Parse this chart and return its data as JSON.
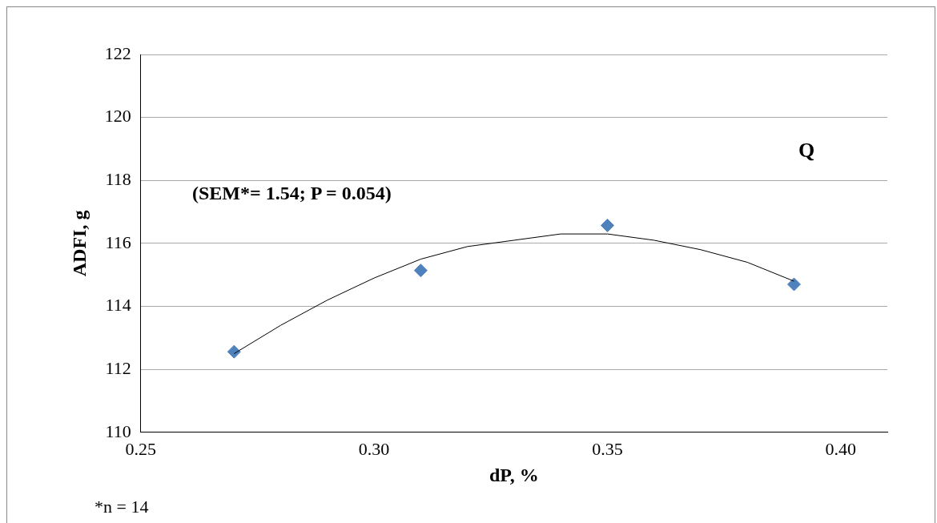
{
  "chart_data": {
    "type": "scatter",
    "xlabel": "dP, %",
    "ylabel": "ADFI, g",
    "xlim": [
      0.25,
      0.41
    ],
    "xticks": [
      {
        "value": 0.25,
        "label": "0.25"
      },
      {
        "value": 0.3,
        "label": "0.30"
      },
      {
        "value": 0.35,
        "label": "0.35"
      },
      {
        "value": 0.4,
        "label": "0.40"
      }
    ],
    "ylim": [
      110,
      122
    ],
    "yticks": [
      110,
      112,
      114,
      116,
      118,
      120,
      122
    ],
    "grid": "y",
    "legend": false,
    "marker": "diamond",
    "annotations": [
      "(SEM*= 1.54; P = 0.054)",
      "Q",
      "*n = 14"
    ],
    "series": [
      {
        "type": "scatter",
        "color": "#4f81bd",
        "x": [
          0.27,
          0.31,
          0.35,
          0.39
        ],
        "values": [
          112.56,
          115.14,
          116.57,
          114.7
        ]
      },
      {
        "type": "line",
        "color": "#000000",
        "marker": "none",
        "x": [
          0.27,
          0.28,
          0.29,
          0.3,
          0.31,
          0.32,
          0.33,
          0.34,
          0.35,
          0.36,
          0.37,
          0.38,
          0.39
        ],
        "values": [
          112.5,
          113.4,
          114.2,
          114.9,
          115.5,
          115.9,
          116.1,
          116.3,
          116.3,
          116.1,
          115.8,
          115.4,
          114.8
        ]
      }
    ]
  }
}
